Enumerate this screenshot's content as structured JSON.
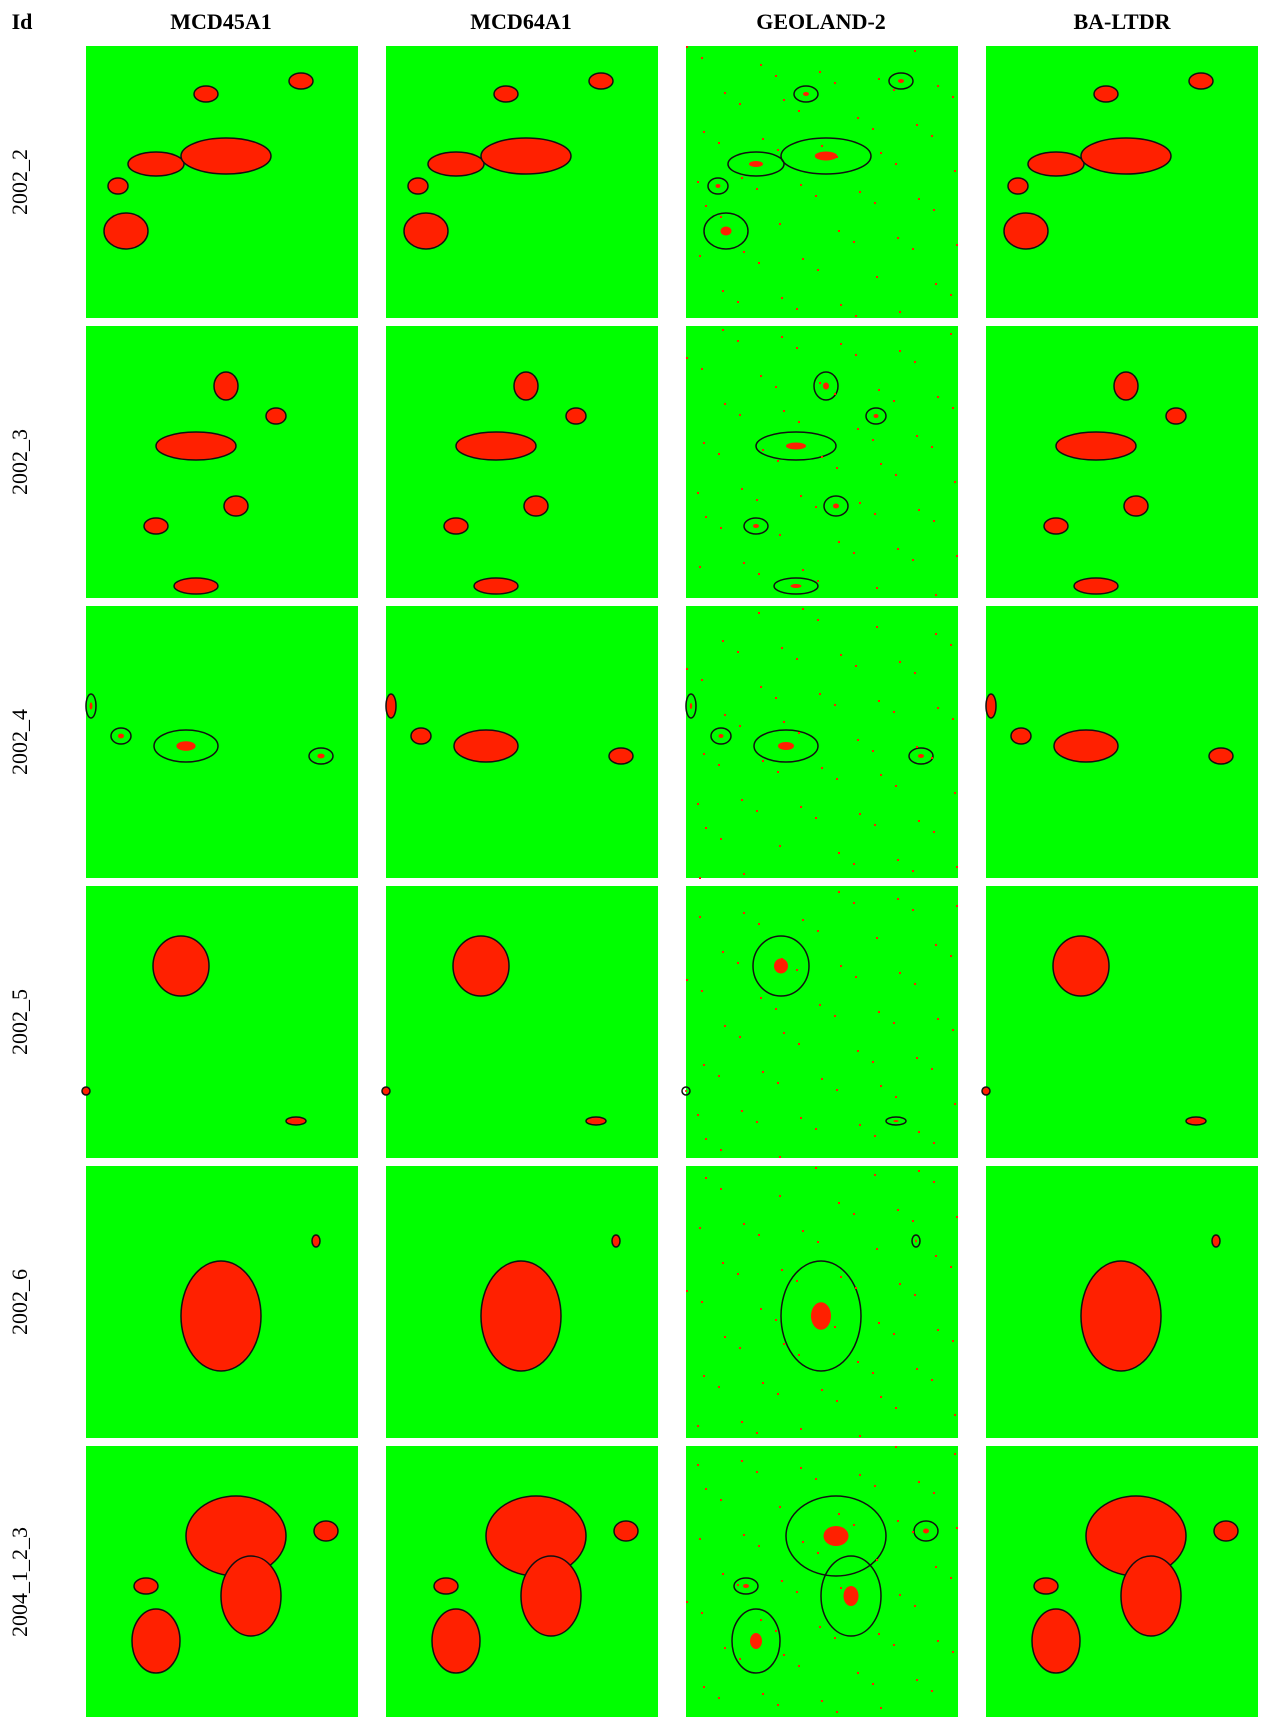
{
  "header": {
    "columns": [
      "Id",
      "MCD45A1",
      "MCD64A1",
      "GEOLAND-2",
      "BA-LTDR"
    ]
  },
  "rows": [
    "2002_2",
    "2002_3",
    "2002_4",
    "2002_5",
    "2002_6",
    "2004_1_2_3"
  ]
}
